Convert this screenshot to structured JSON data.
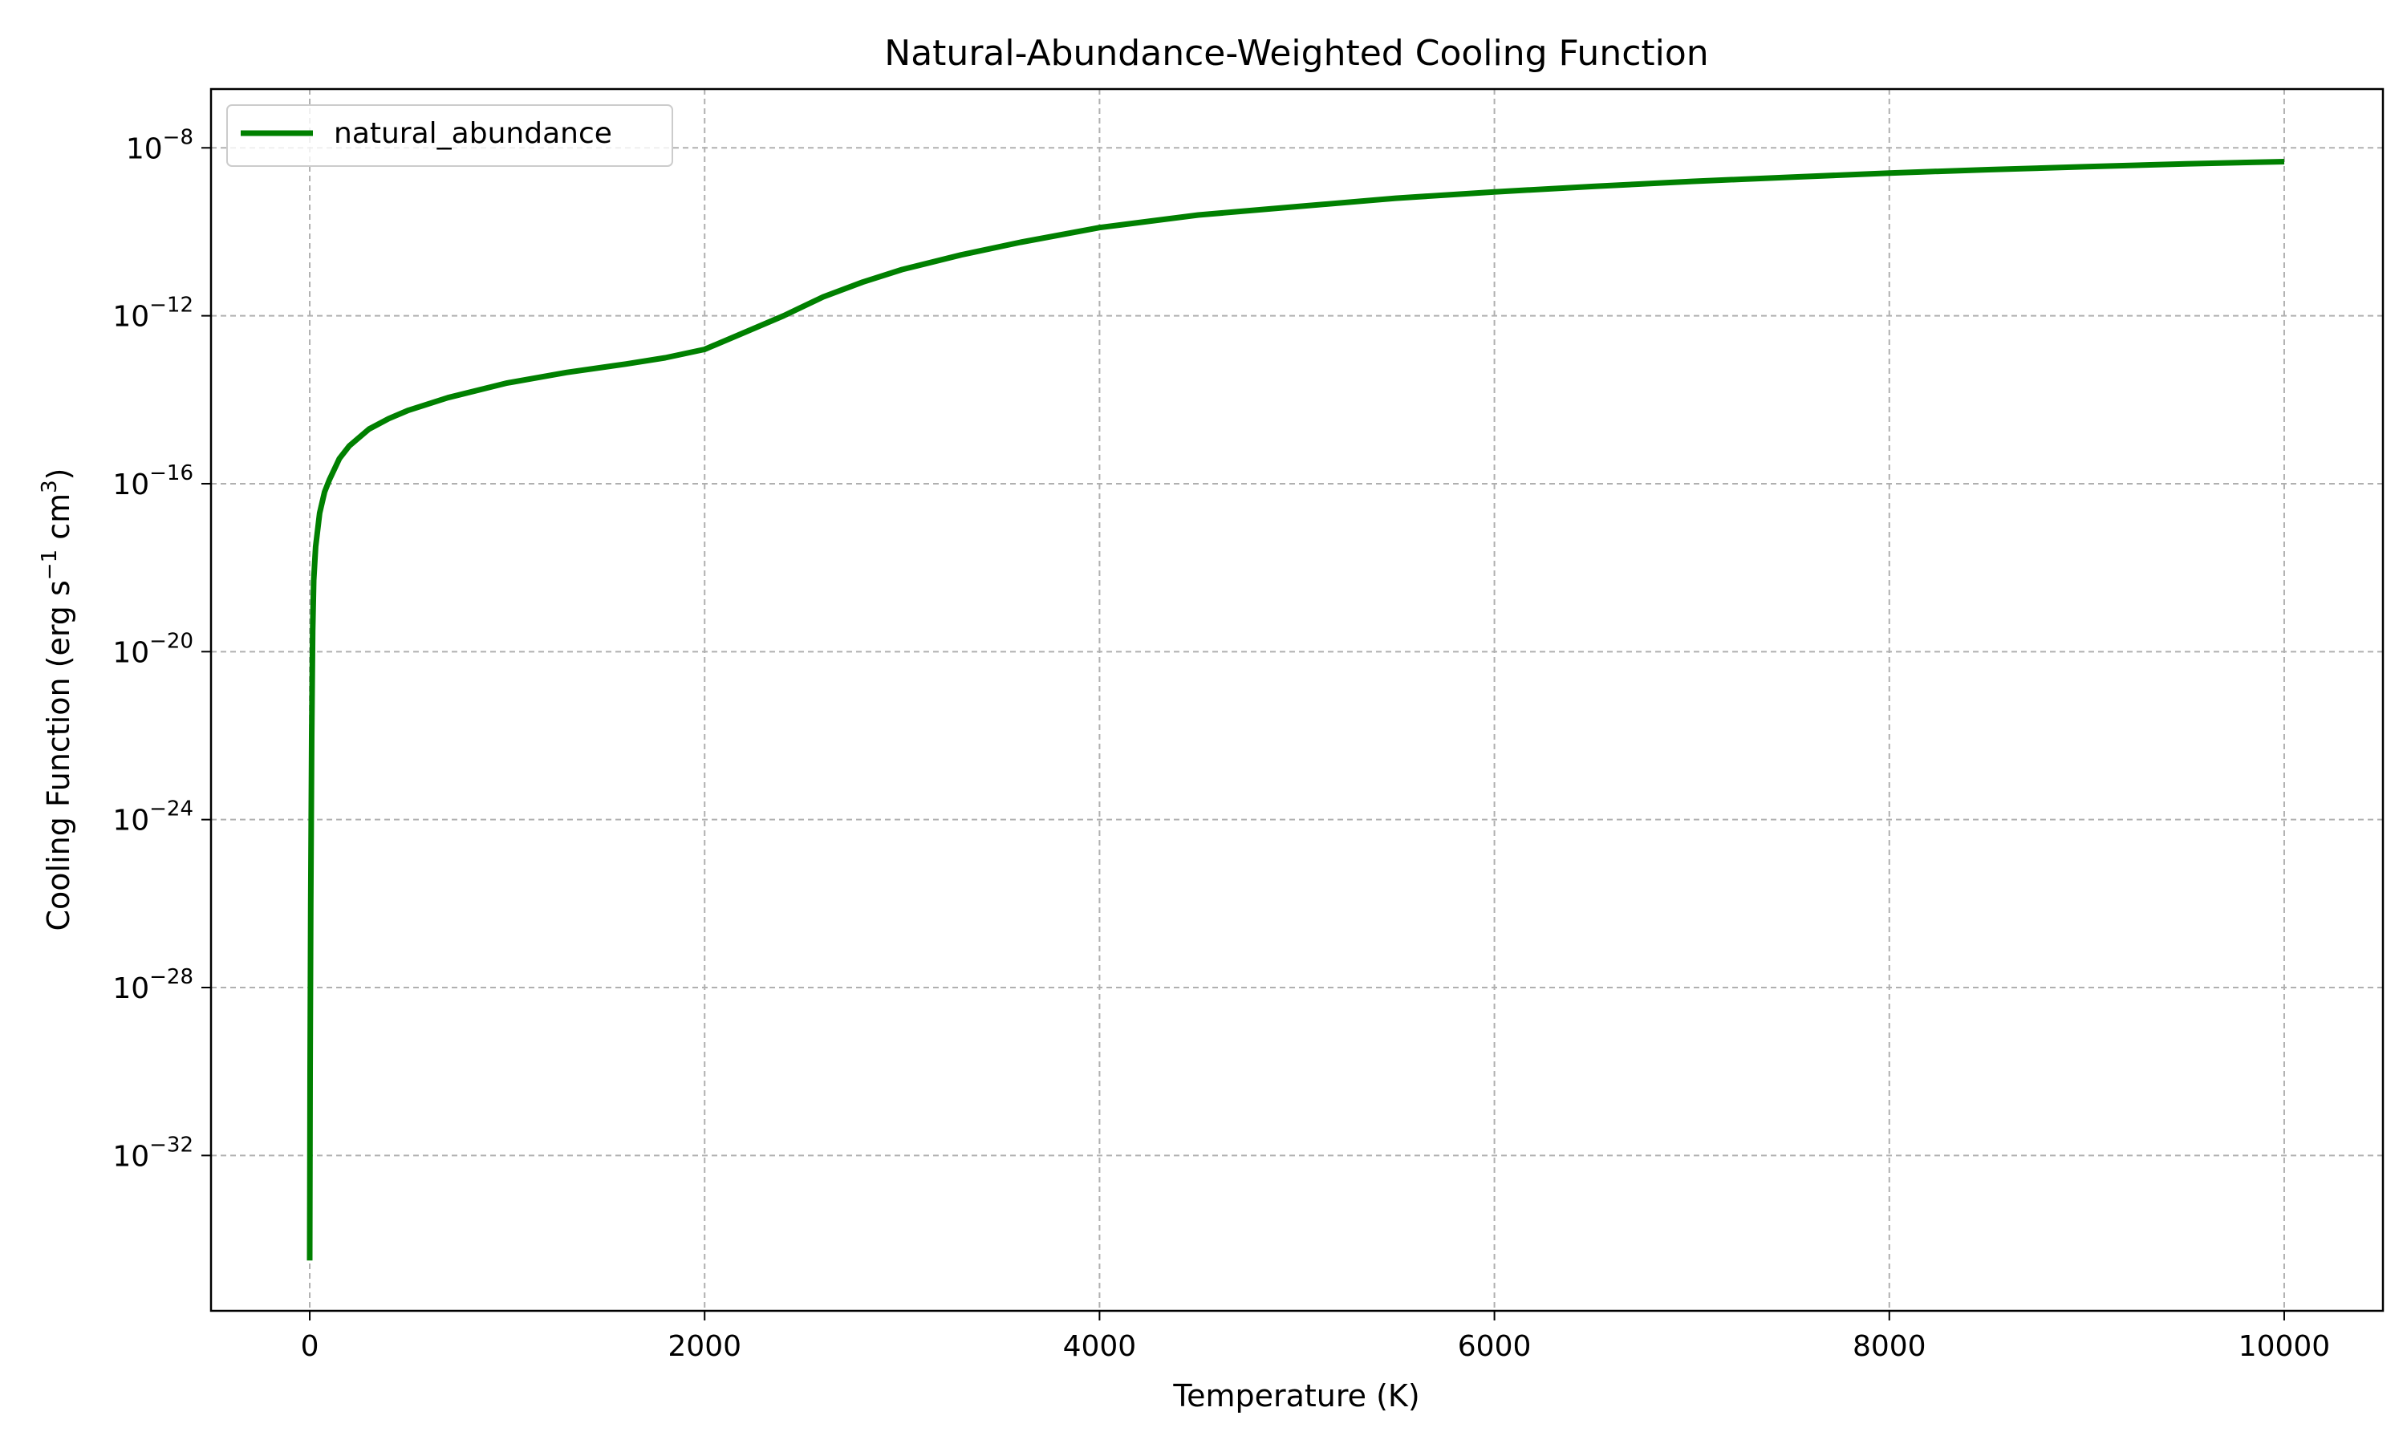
{
  "chart_data": {
    "type": "line",
    "title": "Natural-Abundance-Weighted Cooling Function",
    "xlabel": "Temperature (K)",
    "ylabel": {
      "text": "Cooling Function (erg s",
      "sup1": "−1",
      "mid": " cm",
      "sup2": "3",
      "end": ")"
    },
    "xscale": "linear",
    "yscale": "log",
    "xlim": [
      -500,
      10500
    ],
    "ylim_log10": [
      -35.7,
      -6.6
    ],
    "x_ticks": [
      {
        "value": 0,
        "label": "0"
      },
      {
        "value": 2000,
        "label": "2000"
      },
      {
        "value": 4000,
        "label": "4000"
      },
      {
        "value": 6000,
        "label": "6000"
      },
      {
        "value": 8000,
        "label": "8000"
      },
      {
        "value": 10000,
        "label": "10000"
      }
    ],
    "y_ticks": [
      {
        "log10": -8,
        "base": "10",
        "exp": "−8"
      },
      {
        "log10": -12,
        "base": "10",
        "exp": "−12"
      },
      {
        "log10": -16,
        "base": "10",
        "exp": "−16"
      },
      {
        "log10": -20,
        "base": "10",
        "exp": "−20"
      },
      {
        "log10": -24,
        "base": "10",
        "exp": "−24"
      },
      {
        "log10": -28,
        "base": "10",
        "exp": "−28"
      },
      {
        "log10": -32,
        "base": "10",
        "exp": "−32"
      }
    ],
    "grid": true,
    "legend_position": "top-left",
    "series": [
      {
        "name": "natural_abundance",
        "color": "#008000",
        "x": [
          0,
          2,
          5,
          10,
          15,
          20,
          30,
          50,
          75,
          100,
          150,
          200,
          300,
          400,
          500,
          700,
          1000,
          1300,
          1600,
          1800,
          2000,
          2200,
          2400,
          2600,
          2800,
          3000,
          3300,
          3600,
          4000,
          4500,
          5000,
          5500,
          6000,
          6500,
          7000,
          7500,
          8000,
          8500,
          9000,
          9500,
          10000
        ],
        "log10": [
          -34.5,
          -30.0,
          -26.0,
          -22.0,
          -19.5,
          -18.3,
          -17.5,
          -16.7,
          -16.2,
          -15.9,
          -15.4,
          -15.1,
          -14.7,
          -14.45,
          -14.25,
          -13.95,
          -13.6,
          -13.35,
          -13.15,
          -13.0,
          -12.8,
          -12.4,
          -12.0,
          -11.55,
          -11.2,
          -10.9,
          -10.55,
          -10.25,
          -9.9,
          -9.6,
          -9.4,
          -9.2,
          -9.05,
          -8.92,
          -8.8,
          -8.7,
          -8.6,
          -8.52,
          -8.45,
          -8.38,
          -8.33
        ]
      }
    ]
  }
}
